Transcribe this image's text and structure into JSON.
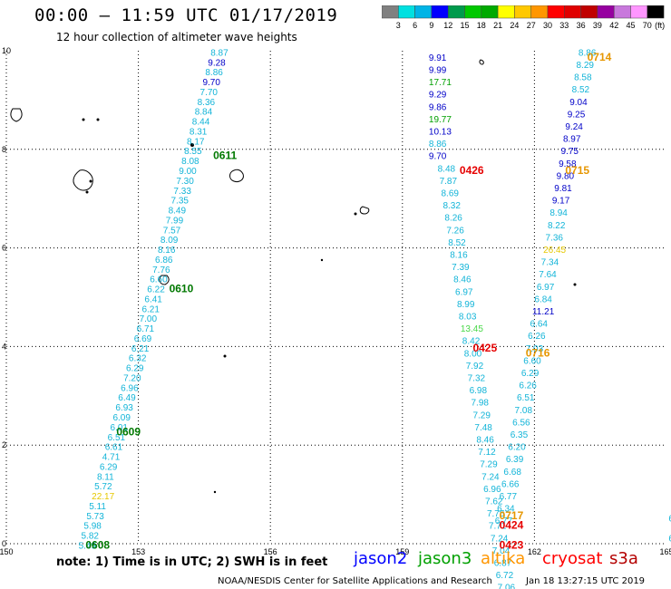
{
  "title": "00:00 – 11:59 UTC 01/17/2019",
  "subtitle": "12 hour collection of altimeter wave heights",
  "colorbar": {
    "unit": "(ft)",
    "bins": [
      {
        "color": "#808080",
        "label": "3"
      },
      {
        "color": "#00e0e0",
        "label": "6"
      },
      {
        "color": "#00b4e6",
        "label": "9"
      },
      {
        "color": "#0000ff",
        "label": "12"
      },
      {
        "color": "#009a4c",
        "label": "15"
      },
      {
        "color": "#00c800",
        "label": "18"
      },
      {
        "color": "#00aa00",
        "label": "21"
      },
      {
        "color": "#ffff00",
        "label": "24"
      },
      {
        "color": "#ffc800",
        "label": "27"
      },
      {
        "color": "#ff9600",
        "label": "30"
      },
      {
        "color": "#ff0000",
        "label": "33"
      },
      {
        "color": "#e00000",
        "label": "36"
      },
      {
        "color": "#c00000",
        "label": "39"
      },
      {
        "color": "#9600a0",
        "label": "42"
      },
      {
        "color": "#c878dc",
        "label": "45"
      },
      {
        "color": "#ff96ff",
        "label": "70"
      },
      {
        "color": "#000000",
        "label": ""
      }
    ]
  },
  "axes": {
    "lon_ticks": [
      "150",
      "153",
      "156",
      "159",
      "162",
      "165"
    ],
    "lat_ticks": [
      "10",
      "8",
      "6",
      "4",
      "2",
      "0"
    ]
  },
  "colors": {
    "cyan": "#12b4d8",
    "blue": "#0000c8",
    "green": "#00a000",
    "lightgreen": "#48d848",
    "yellow": "#e6c800",
    "red": "#e60000",
    "orange": "#e69600",
    "darkgreen": "#007800"
  },
  "time_labels": [
    {
      "text": "0611",
      "lon": 154.7,
      "lat": 7.8,
      "c": "darkgreen"
    },
    {
      "text": "0610",
      "lon": 153.7,
      "lat": 5.1,
      "c": "darkgreen"
    },
    {
      "text": "0609",
      "lon": 152.5,
      "lat": 2.2,
      "c": "darkgreen"
    },
    {
      "text": "0608",
      "lon": 151.8,
      "lat": -0.1,
      "c": "darkgreen"
    },
    {
      "text": "0426",
      "lon": 160.3,
      "lat": 7.5,
      "c": "red"
    },
    {
      "text": "0425",
      "lon": 160.6,
      "lat": 3.9,
      "c": "red"
    },
    {
      "text": "0424",
      "lon": 161.2,
      "lat": 0.3,
      "c": "red"
    },
    {
      "text": "0423",
      "lon": 161.2,
      "lat": -0.1,
      "c": "red"
    },
    {
      "text": "0714",
      "lon": 163.2,
      "lat": 9.8,
      "c": "orange"
    },
    {
      "text": "0715",
      "lon": 162.7,
      "lat": 7.5,
      "c": "orange"
    },
    {
      "text": "0716",
      "lon": 161.8,
      "lat": 3.8,
      "c": "orange"
    },
    {
      "text": "0717",
      "lon": 161.2,
      "lat": 0.5,
      "c": "orange"
    }
  ],
  "tracks": [
    {
      "name": "altika-0608-0611",
      "items": [
        [
          "8.87",
          154.64,
          9.9,
          "cyan"
        ],
        [
          "9.28",
          154.58,
          9.7,
          "blue"
        ],
        [
          "8.86",
          154.52,
          9.5,
          "cyan"
        ],
        [
          "9.70",
          154.46,
          9.3,
          "blue"
        ],
        [
          "7.70",
          154.4,
          9.1,
          "cyan"
        ],
        [
          "8.36",
          154.34,
          8.9,
          "cyan"
        ],
        [
          "8.84",
          154.28,
          8.7,
          "cyan"
        ],
        [
          "8.44",
          154.22,
          8.5,
          "cyan"
        ],
        [
          "8.31",
          154.16,
          8.3,
          "cyan"
        ],
        [
          "8.17",
          154.1,
          8.1,
          "cyan"
        ],
        [
          "8.55",
          154.04,
          7.9,
          "cyan"
        ],
        [
          "8.08",
          153.98,
          7.7,
          "cyan"
        ],
        [
          "9.00",
          153.92,
          7.5,
          "cyan"
        ],
        [
          "7.30",
          153.86,
          7.3,
          "cyan"
        ],
        [
          "7.33",
          153.8,
          7.1,
          "cyan"
        ],
        [
          "7.35",
          153.74,
          6.9,
          "cyan"
        ],
        [
          "8.49",
          153.68,
          6.7,
          "cyan"
        ],
        [
          "7.99",
          153.62,
          6.5,
          "cyan"
        ],
        [
          "7.57",
          153.56,
          6.3,
          "cyan"
        ],
        [
          "8.09",
          153.5,
          6.1,
          "cyan"
        ],
        [
          "8.16",
          153.44,
          5.9,
          "cyan"
        ],
        [
          "6.86",
          153.38,
          5.7,
          "cyan"
        ],
        [
          "7.76",
          153.32,
          5.5,
          "cyan"
        ],
        [
          "6.60",
          153.26,
          5.3,
          "cyan"
        ],
        [
          "6.22",
          153.2,
          5.1,
          "cyan"
        ],
        [
          "6.41",
          153.14,
          4.9,
          "cyan"
        ],
        [
          "6.21",
          153.08,
          4.7,
          "cyan"
        ],
        [
          "7.00",
          153.02,
          4.5,
          "cyan"
        ],
        [
          "6.71",
          152.96,
          4.3,
          "cyan"
        ],
        [
          "6.69",
          152.9,
          4.1,
          "cyan"
        ],
        [
          "6.21",
          152.84,
          3.9,
          "cyan"
        ],
        [
          "6.32",
          152.78,
          3.7,
          "cyan"
        ],
        [
          "6.29",
          152.72,
          3.5,
          "cyan"
        ],
        [
          "7.20",
          152.66,
          3.3,
          "cyan"
        ],
        [
          "6.96",
          152.6,
          3.1,
          "cyan"
        ],
        [
          "6.49",
          152.54,
          2.9,
          "cyan"
        ],
        [
          "6.93",
          152.48,
          2.7,
          "cyan"
        ],
        [
          "6.09",
          152.42,
          2.5,
          "cyan"
        ],
        [
          "6.01",
          152.36,
          2.3,
          "cyan"
        ],
        [
          "6.51",
          152.3,
          2.1,
          "cyan"
        ],
        [
          "6.61",
          152.24,
          1.9,
          "cyan"
        ],
        [
          "4.71",
          152.18,
          1.7,
          "cyan"
        ],
        [
          "6.29",
          152.12,
          1.5,
          "cyan"
        ],
        [
          "8.11",
          152.06,
          1.3,
          "cyan"
        ],
        [
          "5.72",
          152.0,
          1.1,
          "cyan"
        ],
        [
          "22.17",
          151.94,
          0.9,
          "yellow"
        ],
        [
          "5.11",
          151.88,
          0.7,
          "cyan"
        ],
        [
          "5.73",
          151.82,
          0.5,
          "cyan"
        ],
        [
          "5.98",
          151.76,
          0.3,
          "cyan"
        ],
        [
          "5.82",
          151.7,
          0.1,
          "cyan"
        ],
        [
          "5.49",
          151.64,
          -0.1,
          "cyan"
        ]
      ]
    },
    {
      "name": "jason2-0426",
      "items": [
        [
          "9.91",
          159.6,
          9.8,
          "blue"
        ],
        [
          "9.99",
          159.6,
          9.55,
          "blue"
        ],
        [
          "17.71",
          159.6,
          9.3,
          "green"
        ],
        [
          "9.29",
          159.6,
          9.05,
          "blue"
        ],
        [
          "9.86",
          159.6,
          8.8,
          "blue"
        ],
        [
          "19.77",
          159.6,
          8.55,
          "green"
        ],
        [
          "10.13",
          159.6,
          8.3,
          "blue"
        ],
        [
          "8.86",
          159.6,
          8.05,
          "cyan"
        ],
        [
          "9.70",
          159.6,
          7.8,
          "blue"
        ]
      ]
    },
    {
      "name": "cyan-0423-0426",
      "items": [
        [
          "8.48",
          159.8,
          7.55,
          "cyan"
        ],
        [
          "7.87",
          159.84,
          7.3,
          "cyan"
        ],
        [
          "8.69",
          159.88,
          7.05,
          "cyan"
        ],
        [
          "8.32",
          159.92,
          6.8,
          "cyan"
        ],
        [
          "8.26",
          159.96,
          6.55,
          "cyan"
        ],
        [
          "7.26",
          160.0,
          6.3,
          "cyan"
        ],
        [
          "8.52",
          160.04,
          6.05,
          "cyan"
        ],
        [
          "8.16",
          160.08,
          5.8,
          "cyan"
        ],
        [
          "7.39",
          160.12,
          5.55,
          "cyan"
        ],
        [
          "8.46",
          160.16,
          5.3,
          "cyan"
        ],
        [
          "6.97",
          160.2,
          5.05,
          "cyan"
        ],
        [
          "8.99",
          160.24,
          4.8,
          "cyan"
        ],
        [
          "8.03",
          160.28,
          4.55,
          "cyan"
        ],
        [
          "13.45",
          160.32,
          4.3,
          "lightgreen"
        ],
        [
          "8.42",
          160.36,
          4.05,
          "cyan"
        ],
        [
          "8.00",
          160.4,
          3.8,
          "cyan"
        ],
        [
          "7.92",
          160.44,
          3.55,
          "cyan"
        ],
        [
          "7.32",
          160.48,
          3.3,
          "cyan"
        ],
        [
          "6.98",
          160.52,
          3.05,
          "cyan"
        ],
        [
          "7.98",
          160.56,
          2.8,
          "cyan"
        ],
        [
          "7.29",
          160.6,
          2.55,
          "cyan"
        ],
        [
          "7.48",
          160.64,
          2.3,
          "cyan"
        ],
        [
          "8.46",
          160.68,
          2.05,
          "cyan"
        ],
        [
          "7.12",
          160.72,
          1.8,
          "cyan"
        ],
        [
          "7.29",
          160.76,
          1.55,
          "cyan"
        ],
        [
          "7.24",
          160.8,
          1.3,
          "cyan"
        ],
        [
          "6.96",
          160.84,
          1.05,
          "cyan"
        ],
        [
          "7.62",
          160.88,
          0.8,
          "cyan"
        ],
        [
          "7.75",
          160.92,
          0.55,
          "cyan"
        ],
        [
          "7.71",
          160.96,
          0.3,
          "cyan"
        ],
        [
          "7.24",
          161.0,
          0.05,
          "cyan"
        ],
        [
          "7.04",
          161.04,
          -0.2,
          "cyan"
        ],
        [
          "6.87",
          161.08,
          -0.45,
          "cyan"
        ],
        [
          "6.72",
          161.12,
          -0.7,
          "cyan"
        ],
        [
          "7.06",
          161.16,
          -0.95,
          "cyan"
        ]
      ]
    },
    {
      "name": "cyan-0714-0717",
      "items": [
        [
          "8.86",
          163.0,
          9.9,
          "cyan"
        ],
        [
          "8.29",
          162.95,
          9.65,
          "cyan"
        ],
        [
          "8.58",
          162.9,
          9.4,
          "cyan"
        ],
        [
          "8.52",
          162.85,
          9.15,
          "cyan"
        ],
        [
          "9.04",
          162.8,
          8.9,
          "blue"
        ],
        [
          "9.25",
          162.75,
          8.65,
          "blue"
        ],
        [
          "9.24",
          162.7,
          8.4,
          "blue"
        ],
        [
          "8.97",
          162.65,
          8.15,
          "blue"
        ],
        [
          "9.75",
          162.6,
          7.9,
          "blue"
        ],
        [
          "9.58",
          162.55,
          7.65,
          "blue"
        ],
        [
          "9.80",
          162.5,
          7.4,
          "blue"
        ],
        [
          "9.81",
          162.45,
          7.15,
          "blue"
        ],
        [
          "9.17",
          162.4,
          6.9,
          "blue"
        ],
        [
          "8.94",
          162.35,
          6.65,
          "cyan"
        ],
        [
          "8.22",
          162.3,
          6.4,
          "cyan"
        ],
        [
          "7.36",
          162.25,
          6.15,
          "cyan"
        ],
        [
          "26.45",
          162.2,
          5.9,
          "yellow"
        ],
        [
          "7.34",
          162.15,
          5.65,
          "cyan"
        ],
        [
          "7.64",
          162.1,
          5.4,
          "cyan"
        ],
        [
          "6.97",
          162.05,
          5.15,
          "cyan"
        ],
        [
          "6.84",
          162.0,
          4.9,
          "cyan"
        ],
        [
          "11.21",
          161.95,
          4.65,
          "blue"
        ],
        [
          "6.64",
          161.9,
          4.4,
          "cyan"
        ],
        [
          "6.26",
          161.85,
          4.15,
          "cyan"
        ],
        [
          "7.03",
          161.8,
          3.9,
          "cyan"
        ],
        [
          "6.60",
          161.75,
          3.65,
          "cyan"
        ],
        [
          "6.29",
          161.7,
          3.4,
          "cyan"
        ],
        [
          "6.26",
          161.65,
          3.15,
          "cyan"
        ],
        [
          "6.51",
          161.6,
          2.9,
          "cyan"
        ],
        [
          "7.08",
          161.55,
          2.65,
          "cyan"
        ],
        [
          "6.56",
          161.5,
          2.4,
          "cyan"
        ],
        [
          "6.35",
          161.45,
          2.15,
          "cyan"
        ],
        [
          "6.20",
          161.4,
          1.9,
          "cyan"
        ],
        [
          "6.39",
          161.35,
          1.65,
          "cyan"
        ],
        [
          "6.68",
          161.3,
          1.4,
          "cyan"
        ],
        [
          "6.66",
          161.25,
          1.15,
          "cyan"
        ],
        [
          "6.77",
          161.2,
          0.9,
          "cyan"
        ],
        [
          "6.34",
          161.15,
          0.65,
          "cyan"
        ],
        [
          "6.77",
          161.1,
          0.4,
          "cyan"
        ]
      ]
    },
    {
      "name": "edge",
      "items": [
        [
          "6",
          165.05,
          0.45,
          "cyan"
        ],
        [
          "6",
          165.05,
          0.05,
          "cyan"
        ]
      ]
    }
  ],
  "footer": {
    "note": "note: 1) Time is in UTC; 2) SWH is in feet",
    "satellites": [
      {
        "label": "jason2",
        "color": "#0000ff"
      },
      {
        "label": "jason3",
        "color": "#00a000"
      },
      {
        "label": "altika",
        "color": "#ff9600"
      },
      {
        "label": "cryosat",
        "color": "#ff0000"
      },
      {
        "label": "s3a",
        "color": "#b40000"
      }
    ],
    "credit": "NOAA/NESDIS Center for Satellite Applications and Research",
    "timestamp": "Jan 18 13:27:15 UTC 2019"
  }
}
